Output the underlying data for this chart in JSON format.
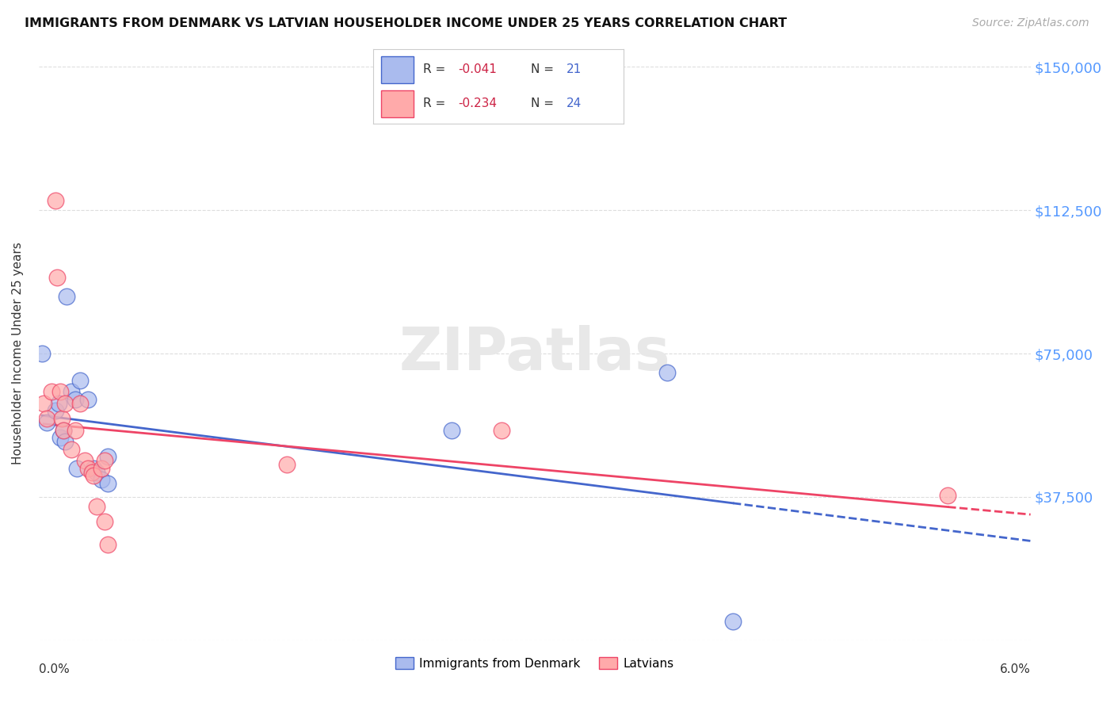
{
  "title": "IMMIGRANTS FROM DENMARK VS LATVIAN HOUSEHOLDER INCOME UNDER 25 YEARS CORRELATION CHART",
  "source": "Source: ZipAtlas.com",
  "ylabel": "Householder Income Under 25 years",
  "legend_label1": "Immigrants from Denmark",
  "legend_label2": "Latvians",
  "legend_R1": "-0.041",
  "legend_N1": "21",
  "legend_R2": "-0.234",
  "legend_N2": "24",
  "xlim": [
    0.0,
    0.06
  ],
  "ylim": [
    0,
    150000
  ],
  "yticks": [
    0,
    37500,
    75000,
    112500,
    150000
  ],
  "ytick_labels": [
    "",
    "$37,500",
    "$75,000",
    "$112,500",
    "$150,000"
  ],
  "background_color": "#ffffff",
  "grid_color": "#dddddd",
  "blue_color": "#aabbee",
  "pink_color": "#ffaaaa",
  "blue_line_color": "#4466cc",
  "pink_line_color": "#ee4466",
  "denmark_x": [
    0.0002,
    0.0005,
    0.001,
    0.0012,
    0.0013,
    0.0015,
    0.0016,
    0.0017,
    0.002,
    0.0022,
    0.0023,
    0.0025,
    0.003,
    0.0033,
    0.0035,
    0.0038,
    0.0042,
    0.0042,
    0.025,
    0.038,
    0.042
  ],
  "denmark_y": [
    75000,
    57000,
    60000,
    62000,
    53000,
    55000,
    52000,
    90000,
    65000,
    63000,
    45000,
    68000,
    63000,
    45000,
    44000,
    42000,
    48000,
    41000,
    55000,
    70000,
    5000
  ],
  "latvian_x": [
    0.0003,
    0.0005,
    0.0008,
    0.001,
    0.0011,
    0.0013,
    0.0014,
    0.0015,
    0.0016,
    0.002,
    0.0022,
    0.0025,
    0.0028,
    0.003,
    0.0032,
    0.0033,
    0.0035,
    0.0038,
    0.004,
    0.004,
    0.0042,
    0.015,
    0.028,
    0.055
  ],
  "latvian_y": [
    62000,
    58000,
    65000,
    115000,
    95000,
    65000,
    58000,
    55000,
    62000,
    50000,
    55000,
    62000,
    47000,
    45000,
    44000,
    43000,
    35000,
    45000,
    47000,
    31000,
    25000,
    46000,
    55000,
    38000
  ]
}
